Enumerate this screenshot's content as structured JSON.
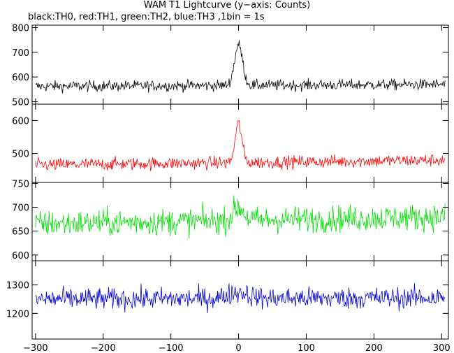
{
  "title": "WAM T1 Lightcurve (y−axis: Counts)",
  "subtitle": "black:TH0, red:TH1, green:TH2, blue:TH3 ,1bin = 1s",
  "chart_data": {
    "type": "line",
    "xlim": [
      -305,
      310
    ],
    "x_ticks": [
      -300,
      -200,
      -100,
      0,
      100,
      200,
      300
    ],
    "bin_seconds": 1,
    "x_step": 1,
    "panels": [
      {
        "name": "TH0",
        "color": "#000000",
        "ylim": [
          490,
          810
        ],
        "y_ticks": [
          500,
          600,
          700,
          800
        ],
        "baseline_start": 562,
        "baseline_end": 570,
        "noise": 32,
        "peak": 730,
        "peak_width": 6
      },
      {
        "name": "TH1",
        "color": "#ff0000",
        "ylim": [
          412,
          650
        ],
        "y_ticks": [
          500,
          600
        ],
        "baseline_start": 465,
        "baseline_end": 480,
        "noise": 28,
        "peak": 590,
        "peak_width": 5
      },
      {
        "name": "TH2",
        "color": "#00e000",
        "ylim": [
          588,
          752
        ],
        "y_ticks": [
          600,
          650,
          700,
          750
        ],
        "baseline_start": 665,
        "baseline_end": 680,
        "noise": 40,
        "peak": 700,
        "peak_width": 8
      },
      {
        "name": "TH3",
        "color": "#0000cc",
        "ylim": [
          1110,
          1385
        ],
        "y_ticks": [
          1200,
          1300
        ],
        "baseline_start": 1250,
        "baseline_end": 1255,
        "noise": 55,
        "peak": 1275,
        "peak_width": 15
      }
    ]
  }
}
